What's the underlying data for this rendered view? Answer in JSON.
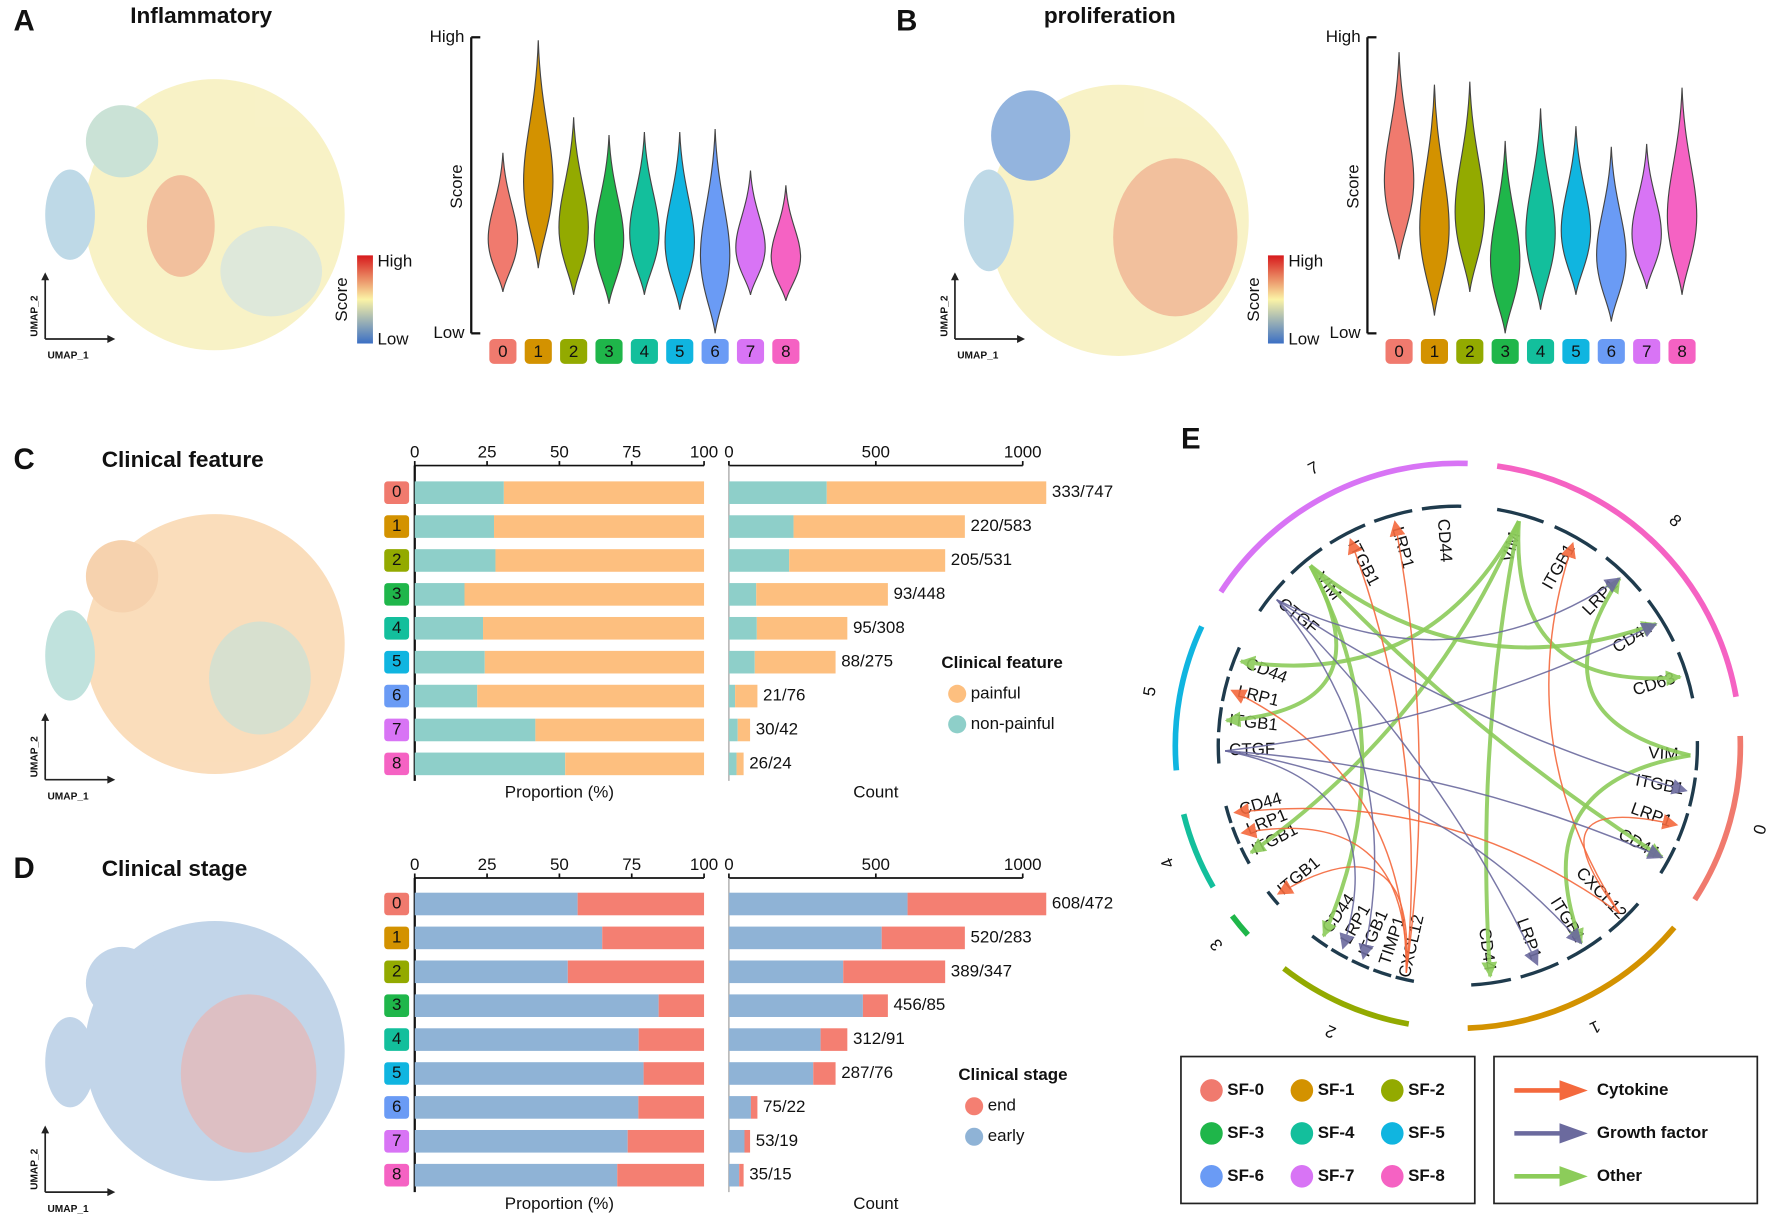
{
  "panels": [
    {
      "letter": "A",
      "title": "Inflammatory",
      "umap_x": "UMAP_1",
      "umap_y": "UMAP_2",
      "colorbar": {
        "label": "Score",
        "high": "High",
        "low": "Low"
      }
    },
    {
      "letter": "B",
      "title": "proliferation",
      "umap_x": "UMAP_1",
      "umap_y": "UMAP_2",
      "colorbar": {
        "label": "Score",
        "high": "High",
        "low": "Low"
      }
    },
    {
      "letter": "C",
      "title": "Clinical feature",
      "umap_x": "UMAP_1",
      "umap_y": "UMAP_2"
    },
    {
      "letter": "D",
      "title": "Clinical stage",
      "umap_x": "UMAP_1",
      "umap_y": "UMAP_2"
    }
  ],
  "chart_data": [
    {
      "type": "violin",
      "ylabel": "Score",
      "ylim": [
        0,
        1
      ],
      "yticks": [
        {
          "value": 0,
          "label": "Low"
        },
        {
          "value": 1,
          "label": "High"
        }
      ],
      "categories": [
        "0",
        "1",
        "2",
        "3",
        "4",
        "5",
        "6",
        "7",
        "8"
      ],
      "category_colors": [
        "#f07a6e",
        "#d39200",
        "#93aa00",
        "#1fb64a",
        "#13bf9c",
        "#10b5e0",
        "#6a9bf5",
        "#d874f5",
        "#f562c3"
      ],
      "max": [
        0.61,
        0.99,
        0.73,
        0.67,
        0.68,
        0.68,
        0.69,
        0.55,
        0.5
      ],
      "min": [
        0.14,
        0.22,
        0.13,
        0.1,
        0.13,
        0.08,
        0.0,
        0.13,
        0.11
      ]
    },
    {
      "type": "violin",
      "ylabel": "Score",
      "ylim": [
        0,
        1
      ],
      "yticks": [
        {
          "value": 0,
          "label": "Low"
        },
        {
          "value": 1,
          "label": "High"
        }
      ],
      "categories": [
        "0",
        "1",
        "2",
        "3",
        "4",
        "5",
        "6",
        "7",
        "8"
      ],
      "category_colors": [
        "#f07a6e",
        "#d39200",
        "#93aa00",
        "#1fb64a",
        "#13bf9c",
        "#10b5e0",
        "#6a9bf5",
        "#d874f5",
        "#f562c3"
      ],
      "max": [
        0.95,
        0.84,
        0.85,
        0.65,
        0.76,
        0.7,
        0.63,
        0.64,
        0.83
      ],
      "min": [
        0.25,
        0.06,
        0.14,
        0.0,
        0.08,
        0.13,
        0.04,
        0.15,
        0.13
      ]
    },
    {
      "type": "bar",
      "orientation": "horizontal",
      "stacked": true,
      "xlabel": "Proportion (%)",
      "categories": [
        "0",
        "1",
        "2",
        "3",
        "4",
        "5",
        "6",
        "7",
        "8"
      ],
      "category_colors": [
        "#f07a6e",
        "#d39200",
        "#93aa00",
        "#1fb64a",
        "#13bf9c",
        "#10b5e0",
        "#6a9bf5",
        "#d874f5",
        "#f562c3"
      ],
      "xlim": [
        0,
        100
      ],
      "xticks": [
        0,
        25,
        50,
        75,
        100
      ],
      "series": [
        {
          "color": "#8ecfc9",
          "values": [
            30.8,
            27.4,
            27.9,
            17.2,
            23.6,
            24.2,
            21.6,
            41.7,
            52.0
          ]
        },
        {
          "color": "#fdbf7f",
          "values": [
            69.2,
            72.6,
            72.1,
            82.8,
            76.4,
            75.8,
            78.4,
            58.3,
            48.0
          ]
        }
      ]
    },
    {
      "type": "bar",
      "orientation": "horizontal",
      "stacked": true,
      "xlabel": "Count",
      "xlim": [
        0,
        1000
      ],
      "xticks": [
        0,
        500,
        1000
      ],
      "legend": {
        "title": "Clinical feature"
      },
      "series": [
        {
          "name": "non-painful",
          "color": "#8ecfc9",
          "values": [
            333,
            220,
            205,
            93,
            95,
            88,
            21,
            30,
            26
          ]
        },
        {
          "name": "painful",
          "color": "#fdbf7f",
          "values": [
            747,
            583,
            531,
            448,
            308,
            275,
            76,
            42,
            24
          ]
        }
      ],
      "value_labels": [
        "333/747",
        "220/583",
        "205/531",
        "93/448",
        "95/308",
        "88/275",
        "21/76",
        "30/42",
        "26/24"
      ]
    },
    {
      "type": "bar",
      "orientation": "horizontal",
      "stacked": true,
      "xlabel": "Proportion (%)",
      "categories": [
        "0",
        "1",
        "2",
        "3",
        "4",
        "5",
        "6",
        "7",
        "8"
      ],
      "category_colors": [
        "#f07a6e",
        "#d39200",
        "#93aa00",
        "#1fb64a",
        "#13bf9c",
        "#10b5e0",
        "#6a9bf5",
        "#d874f5",
        "#f562c3"
      ],
      "xlim": [
        0,
        100
      ],
      "xticks": [
        0,
        25,
        50,
        75,
        100
      ],
      "series": [
        {
          "color": "#8fb3d6",
          "values": [
            56.3,
            64.8,
            52.9,
            84.3,
            77.4,
            79.1,
            77.3,
            73.6,
            70.0
          ]
        },
        {
          "color": "#f47f72",
          "values": [
            43.7,
            35.2,
            47.1,
            15.7,
            22.6,
            20.9,
            22.7,
            26.4,
            30.0
          ]
        }
      ]
    },
    {
      "type": "bar",
      "orientation": "horizontal",
      "stacked": true,
      "xlabel": "Count",
      "xlim": [
        0,
        1000
      ],
      "xticks": [
        0,
        500,
        1000
      ],
      "legend": {
        "title": "Clinical stage"
      },
      "series": [
        {
          "name": "early",
          "color": "#8fb3d6",
          "values": [
            608,
            520,
            389,
            456,
            312,
            287,
            75,
            53,
            35
          ]
        },
        {
          "name": "end",
          "color": "#f47f72",
          "values": [
            472,
            283,
            347,
            85,
            91,
            76,
            22,
            19,
            15
          ]
        }
      ],
      "value_labels": [
        "608/472",
        "520/283",
        "389/347",
        "456/85",
        "312/91",
        "287/76",
        "75/22",
        "53/19",
        "35/15"
      ]
    }
  ],
  "chord": {
    "letter": "E",
    "sectors": [
      {
        "label": "7",
        "color": "#d874f5",
        "genes": [
          "CTGF",
          "VIM",
          "ITGB1",
          "LRP1",
          "CD44"
        ]
      },
      {
        "label": "8",
        "color": "#f562c3",
        "genes": [
          "VIM",
          "ITGB1",
          "LRP1",
          "CD44",
          "CD63"
        ]
      },
      {
        "label": "0",
        "color": "#f07a6e",
        "genes": [
          "VIM",
          "ITGB1",
          "LRP1",
          "CD44"
        ]
      },
      {
        "label": "1",
        "color": "#d39200",
        "genes": [
          "CXCL12",
          "ITGB1",
          "LRP1",
          "CD44"
        ]
      },
      {
        "label": "2",
        "color": "#93aa00",
        "genes": [
          "CXCL12",
          "TIMP1",
          "ITGB1",
          "LRP1",
          "CD44"
        ]
      },
      {
        "label": "3",
        "color": "#1fb64a",
        "genes": [
          "ITGB1"
        ]
      },
      {
        "label": "4",
        "color": "#13bf9c",
        "genes": [
          "ITGB1",
          "LRP1",
          "CD44"
        ]
      },
      {
        "label": "5",
        "color": "#10b5e0",
        "genes": [
          "CTGF",
          "ITGB1",
          "LRP1",
          "CD44"
        ]
      }
    ],
    "legend": {
      "clusters": [
        "SF-0",
        "SF-1",
        "SF-2",
        "SF-3",
        "SF-4",
        "SF-5",
        "SF-6",
        "SF-7",
        "SF-8"
      ],
      "cluster_colors": [
        "#f07a6e",
        "#d39200",
        "#93aa00",
        "#1fb64a",
        "#13bf9c",
        "#10b5e0",
        "#6a9bf5",
        "#d874f5",
        "#f562c3"
      ],
      "link_types": [
        {
          "label": "Cytokine",
          "color": "#f4693d"
        },
        {
          "label": "Growth factor",
          "color": "#6b6a9e"
        },
        {
          "label": "Other",
          "color": "#8ccc5a"
        }
      ]
    }
  }
}
